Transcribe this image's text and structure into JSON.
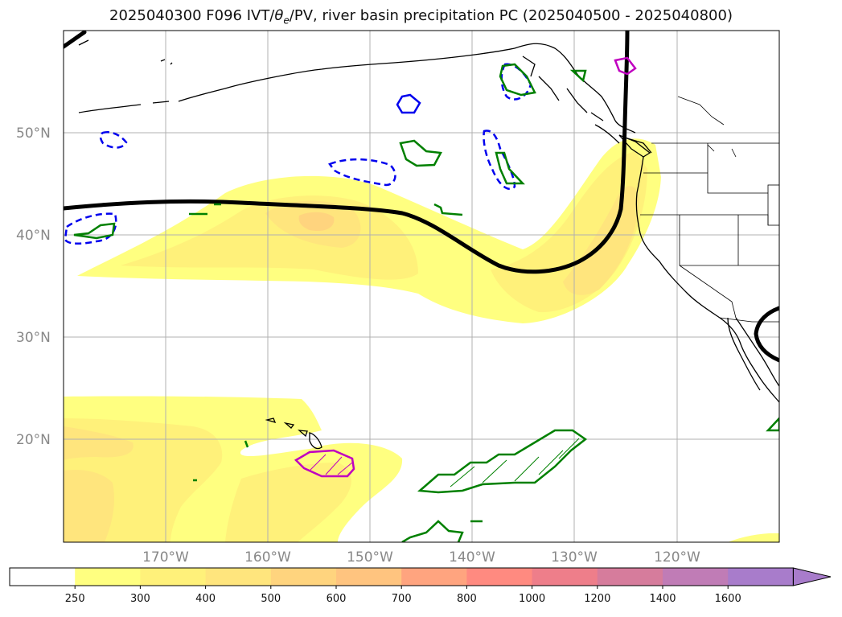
{
  "title": {
    "prefix": "2025040300 F096 IVT/",
    "theta": "θ",
    "theta_sub": "e",
    "suffix": "/PV, river basin precipitation PC (2025040500 - 2025040800)"
  },
  "map": {
    "lon_labels": [
      "170°W",
      "160°W",
      "150°W",
      "140°W",
      "130°W",
      "120°W"
    ],
    "lat_labels": [
      "50°N",
      "40°N",
      "30°N",
      "20°N"
    ]
  },
  "colorbar": {
    "ticks": [
      "250",
      "300",
      "400",
      "500",
      "600",
      "700",
      "800",
      "1000",
      "1200",
      "1400",
      "1600"
    ],
    "colors": [
      "#ffffff",
      "#ffff80",
      "#fff17a",
      "#ffe57d",
      "#ffd47e",
      "#ffc47f",
      "#ffa47f",
      "#ff8a80",
      "#ee7e8a",
      "#d67c9c",
      "#c07cb6",
      "#a87ccb"
    ]
  }
}
